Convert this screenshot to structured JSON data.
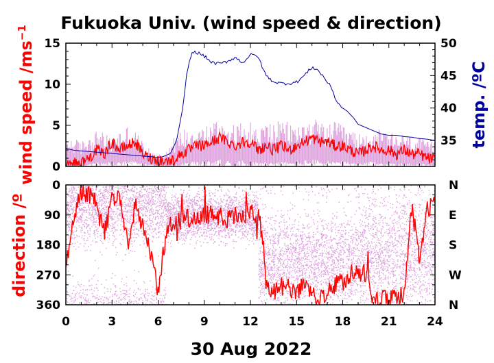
{
  "colors": {
    "wind_mean": "#ff0000",
    "wind_gust": "#dda0dd",
    "temperature": "#0000a0",
    "frame": "#000000"
  },
  "chart_data": [
    {
      "type": "line",
      "panel": "wind speed and temperature",
      "title": "Fukuoka Univ. (wind speed & direction)",
      "ylabel": "wind speed /ms",
      "ylabel_superscript": "−1",
      "y2label": "temp. /ºC",
      "xlim": [
        0,
        24
      ],
      "ylim": [
        0,
        15
      ],
      "y2lim": [
        31,
        50
      ],
      "yticks": [
        0,
        5,
        10,
        15
      ],
      "y2ticks": [
        35,
        40,
        45,
        50
      ],
      "series": [
        {
          "role": "wind gust envelope (max)",
          "axis": "left",
          "x": [
            0,
            0.5,
            1,
            1.5,
            2,
            2.5,
            3,
            3.5,
            4,
            4.5,
            5,
            5.5,
            6,
            6.5,
            7,
            7.5,
            8,
            8.5,
            9,
            9.5,
            10,
            10.5,
            11,
            11.5,
            12,
            12.5,
            13,
            13.5,
            14,
            14.5,
            15,
            15.5,
            16,
            16.5,
            17,
            17.5,
            18,
            18.5,
            19,
            19.5,
            20,
            20.5,
            21,
            21.5,
            22,
            22.5,
            23,
            23.5,
            24
          ],
          "values": [
            3.5,
            3.5,
            3.0,
            4.0,
            4.5,
            4.0,
            3.5,
            4.5,
            5.0,
            4.5,
            3.0,
            2.0,
            1.5,
            2.0,
            3.5,
            4.5,
            5.0,
            5.0,
            5.0,
            5.5,
            6.0,
            5.5,
            5.0,
            5.5,
            5.5,
            4.5,
            5.5,
            5.5,
            5.5,
            5.5,
            5.0,
            5.5,
            6.0,
            5.5,
            5.0,
            5.5,
            5.0,
            4.5,
            4.0,
            4.0,
            4.5,
            4.5,
            4.0,
            4.0,
            4.0,
            3.5,
            3.5,
            3.0,
            3.0
          ]
        },
        {
          "role": "wind speed (mean)",
          "axis": "left",
          "x": [
            0,
            0.5,
            1,
            1.5,
            2,
            2.5,
            3,
            3.5,
            4,
            4.5,
            5,
            5.5,
            6,
            6.5,
            7,
            7.5,
            8,
            8.5,
            9,
            9.5,
            10,
            10.5,
            11,
            11.5,
            12,
            12.5,
            13,
            13.5,
            14,
            14.5,
            15,
            15.5,
            16,
            16.5,
            17,
            17.5,
            18,
            18.5,
            19,
            19.5,
            20,
            20.5,
            21,
            21.5,
            22,
            22.5,
            23,
            23.5,
            24
          ],
          "values": [
            0.5,
            0.4,
            0.5,
            1.0,
            2.0,
            1.5,
            3.0,
            2.0,
            2.5,
            3.0,
            1.5,
            1.0,
            0.8,
            0.6,
            0.8,
            1.5,
            2.0,
            2.5,
            2.5,
            3.0,
            3.5,
            3.0,
            2.5,
            3.0,
            3.0,
            2.0,
            2.5,
            2.0,
            2.5,
            2.0,
            2.5,
            3.0,
            3.5,
            3.0,
            3.0,
            2.5,
            2.5,
            2.0,
            1.5,
            2.0,
            2.5,
            2.0,
            2.0,
            1.5,
            2.0,
            1.5,
            1.5,
            1.0,
            0.8
          ]
        },
        {
          "role": "temperature",
          "axis": "right",
          "x": [
            0,
            0.5,
            1,
            1.5,
            2,
            2.5,
            3,
            3.5,
            4,
            4.5,
            5,
            5.5,
            6,
            6.3,
            6.8,
            7.2,
            7.6,
            7.9,
            8.2,
            8.5,
            9,
            9.5,
            10,
            10.5,
            11,
            11.5,
            12,
            12.5,
            12.8,
            13.2,
            13.6,
            14,
            14.5,
            15,
            15.5,
            16,
            16.3,
            16.7,
            17,
            17.3,
            17.6,
            18,
            18.3,
            18.7,
            19,
            19.5,
            20,
            20.5,
            21,
            21.5,
            22,
            22.5,
            23,
            23.5,
            24
          ],
          "values": [
            33.8,
            33.5,
            33.4,
            33.3,
            33.2,
            33.1,
            33.0,
            32.9,
            32.8,
            32.7,
            32.6,
            32.5,
            32.4,
            32.5,
            33.0,
            35.0,
            40.0,
            46.0,
            48.5,
            48.6,
            48.0,
            47.0,
            46.8,
            47.2,
            47.8,
            47.0,
            48.2,
            48.0,
            46.0,
            44.5,
            44.0,
            43.8,
            43.8,
            44.0,
            45.0,
            46.3,
            46.0,
            45.0,
            44.0,
            43.0,
            41.0,
            40.0,
            39.5,
            38.5,
            37.5,
            37.0,
            36.5,
            36.0,
            35.8,
            35.8,
            35.6,
            35.5,
            35.3,
            35.2,
            35.0
          ]
        }
      ]
    },
    {
      "type": "scatter",
      "panel": "wind direction",
      "ylabel": "direction /º",
      "xlabel": "30 Aug 2022",
      "xlim": [
        0,
        24
      ],
      "ylim": [
        360,
        0
      ],
      "xticks": [
        0,
        3,
        6,
        9,
        12,
        15,
        18,
        21,
        24
      ],
      "yticks": [
        0,
        90,
        180,
        270,
        360
      ],
      "compass_labels": [
        "N",
        "E",
        "S",
        "W",
        "N"
      ],
      "series": [
        {
          "role": "instantaneous direction",
          "bands": [
            {
              "x": [
                0,
                6.5
              ],
              "center": 60,
              "spread": 120
            },
            {
              "x": [
                6.5,
                12.5
              ],
              "center": 95,
              "spread": 70
            },
            {
              "x": [
                12.5,
                19
              ],
              "center": 230,
              "spread": 140
            },
            {
              "x": [
                19,
                24
              ],
              "center": 210,
              "spread": 170
            }
          ]
        },
        {
          "role": "mean direction",
          "x": [
            0,
            0.5,
            1,
            1.5,
            2,
            2.5,
            3,
            3.5,
            4,
            4.5,
            5,
            5.5,
            6,
            6.5,
            7,
            7.5,
            8,
            8.5,
            9,
            9.5,
            10,
            10.5,
            11,
            11.5,
            12,
            12.5,
            12.8,
            13,
            13.5,
            14,
            14.5,
            15,
            15.5,
            16,
            16.5,
            17,
            17.5,
            18,
            18.5,
            19,
            19.5,
            20,
            20.5,
            21,
            21.5,
            22,
            22.5,
            23,
            23.5,
            24
          ],
          "values": [
            240,
            90,
            20,
            30,
            60,
            150,
            40,
            30,
            180,
            60,
            120,
            200,
            320,
            150,
            110,
            110,
            100,
            105,
            95,
            90,
            95,
            100,
            90,
            95,
            85,
            90,
            160,
            300,
            320,
            300,
            310,
            320,
            300,
            330,
            350,
            310,
            300,
            290,
            270,
            260,
            270,
            340,
            345,
            330,
            340,
            320,
            60,
            240,
            80,
            40
          ]
        }
      ]
    }
  ]
}
